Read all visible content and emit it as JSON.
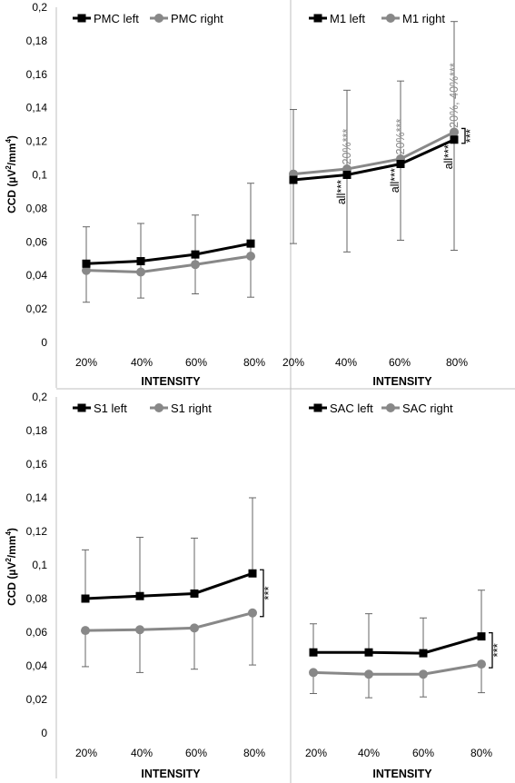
{
  "ylabel_main": "CCD (µV",
  "ylabel_sup1": "2",
  "ylabel_mid": "/mm",
  "ylabel_sup2": "4",
  "ylabel_end": ")",
  "xlabel": "INTENSITY",
  "sig_label": "***",
  "chart_data": [
    {
      "type": "line",
      "panel": "top-left",
      "categories": [
        "20%",
        "40%",
        "60%",
        "80%"
      ],
      "yticks": [
        "0",
        "0,02",
        "0,04",
        "0,06",
        "0,08",
        "0,1",
        "0,12",
        "0,14",
        "0,16",
        "0,18",
        "0,2"
      ],
      "ylim": [
        0,
        0.2
      ],
      "xlabel": "INTENSITY",
      "ylabel": "CCD (µV²/mm⁴)",
      "legend_position": "top-left",
      "series": [
        {
          "name": "PMC left",
          "color": "#000000",
          "marker": "square",
          "values": [
            0.047,
            0.0485,
            0.0525,
            0.059
          ],
          "err_upper": [
            0.069,
            0.071,
            0.076,
            0.095
          ],
          "err_lower": [
            0.024,
            0.0265,
            0.029,
            0.027
          ]
        },
        {
          "name": "PMC right",
          "color": "#888888",
          "marker": "circle",
          "values": [
            0.043,
            0.042,
            0.0465,
            0.0515
          ],
          "err_upper": null,
          "err_lower": null
        }
      ],
      "annotations": []
    },
    {
      "type": "line",
      "panel": "top-right",
      "categories": [
        "20%",
        "40%",
        "60%",
        "80%"
      ],
      "yticks": [],
      "ylim": [
        0,
        0.2
      ],
      "xlabel": "INTENSITY",
      "ylabel": "",
      "legend_position": "top-left",
      "series": [
        {
          "name": "M1 left",
          "color": "#000000",
          "marker": "square",
          "values": [
            0.097,
            0.1,
            0.1065,
            0.121
          ],
          "err_upper": null,
          "err_lower": [
            0.059,
            0.054,
            0.061,
            0.055
          ]
        },
        {
          "name": "M1 right",
          "color": "#888888",
          "marker": "circle",
          "values": [
            0.1005,
            0.1035,
            0.1095,
            0.1255
          ],
          "err_upper": [
            0.139,
            0.1505,
            0.156,
            0.1915
          ],
          "err_lower": null
        }
      ],
      "annotations": [
        {
          "text": "20%***",
          "category": 1,
          "color": "#888888",
          "level": 0.106,
          "side": "above"
        },
        {
          "text": "20%***",
          "category": 2,
          "color": "#888888",
          "level": 0.112,
          "side": "above"
        },
        {
          "text": "20%, 40%***",
          "category": 3,
          "color": "#888888",
          "level": 0.128,
          "side": "above"
        },
        {
          "text": "all***",
          "category": 1,
          "color": "#000000",
          "level": 0.097,
          "side": "below"
        },
        {
          "text": "all***",
          "category": 2,
          "color": "#000000",
          "level": 0.104,
          "side": "below"
        },
        {
          "text": "all***",
          "category": 3,
          "color": "#000000",
          "level": 0.118,
          "side": "below"
        }
      ],
      "bracket": {
        "from": 0.121,
        "to": 0.1255
      }
    },
    {
      "type": "line",
      "panel": "bottom-left",
      "categories": [
        "20%",
        "40%",
        "60%",
        "80%"
      ],
      "yticks": [
        "0",
        "0,02",
        "0,04",
        "0,06",
        "0,08",
        "0,1",
        "0,12",
        "0,14",
        "0,16",
        "0,18",
        "0,2"
      ],
      "ylim": [
        0,
        0.2
      ],
      "xlabel": "INTENSITY",
      "ylabel": "CCD (µV²/mm⁴)",
      "legend_position": "top-left",
      "series": [
        {
          "name": "S1 left",
          "color": "#000000",
          "marker": "square",
          "values": [
            0.08,
            0.0815,
            0.083,
            0.095
          ],
          "err_upper": [
            0.109,
            0.1165,
            0.116,
            0.14
          ],
          "err_lower": null
        },
        {
          "name": "S1 right",
          "color": "#888888",
          "marker": "circle",
          "values": [
            0.061,
            0.0615,
            0.0625,
            0.0715
          ],
          "err_upper": null,
          "err_lower": [
            0.0395,
            0.036,
            0.038,
            0.0405
          ]
        }
      ],
      "annotations": [],
      "bracket": {
        "from": 0.0715,
        "to": 0.095
      }
    },
    {
      "type": "line",
      "panel": "bottom-right",
      "categories": [
        "20%",
        "40%",
        "60%",
        "80%"
      ],
      "yticks": [],
      "ylim": [
        0,
        0.2
      ],
      "xlabel": "INTENSITY",
      "ylabel": "",
      "legend_position": "top-left",
      "series": [
        {
          "name": "SAC left",
          "color": "#000000",
          "marker": "square",
          "values": [
            0.048,
            0.048,
            0.0475,
            0.0575
          ],
          "err_upper": [
            0.065,
            0.071,
            0.0685,
            0.085
          ],
          "err_lower": null
        },
        {
          "name": "SAC right",
          "color": "#888888",
          "marker": "circle",
          "values": [
            0.036,
            0.035,
            0.035,
            0.041
          ],
          "err_upper": null,
          "err_lower": [
            0.0235,
            0.021,
            0.0215,
            0.024
          ]
        }
      ],
      "annotations": [],
      "bracket": {
        "from": 0.041,
        "to": 0.0575
      }
    }
  ]
}
